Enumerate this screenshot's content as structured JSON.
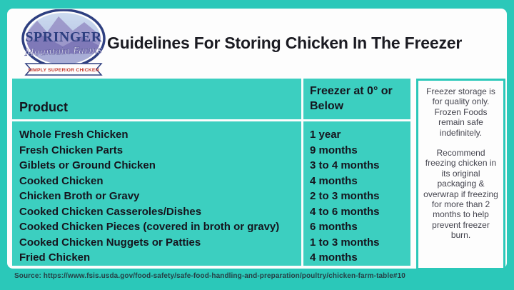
{
  "brand": {
    "name": "SPRINGER",
    "script_name": "Mountain Farms",
    "tagline": "SIMPLY SUPERIOR CHICKEN"
  },
  "title": "Guidelines For Storing Chicken In The Freezer",
  "table": {
    "col1_header": "Product",
    "col2_header": "Freezer at 0° or Below",
    "rows": [
      {
        "product": "Whole Fresh Chicken",
        "duration": "1 year"
      },
      {
        "product": "Fresh Chicken Parts",
        "duration": "9 months"
      },
      {
        "product": "Giblets or Ground Chicken",
        "duration": "3 to 4 months"
      },
      {
        "product": "Cooked Chicken",
        "duration": "4 months"
      },
      {
        "product": "Chicken Broth or Gravy",
        "duration": "2 to 3 months"
      },
      {
        "product": "Cooked Chicken Casseroles/Dishes",
        "duration": "4 to 6 months"
      },
      {
        "product": "Cooked Chicken Pieces (covered in broth or gravy)",
        "duration": "6 months"
      },
      {
        "product": "Cooked Chicken Nuggets or Patties",
        "duration": "1 to 3 months"
      },
      {
        "product": "Fried Chicken",
        "duration": "4 months"
      }
    ]
  },
  "sidebar": {
    "note1": "Freezer storage is for quality only. Frozen Foods remain safe indefinitely.",
    "note2": "Recommend freezing chicken in its original packaging & overwrap if freezing for more than 2 months to help prevent freezer burn."
  },
  "source": "Source: https://www.fsis.usda.gov/food-safety/safe-food-handling-and-preparation/poultry/chicken-farm-table#10",
  "colors": {
    "frame_teal": "#2bc8b9",
    "cell_teal": "#3ccfc0",
    "text_dark": "#15151e",
    "logo_navy": "#2e3f80",
    "ribbon_red": "#c53a2e"
  }
}
